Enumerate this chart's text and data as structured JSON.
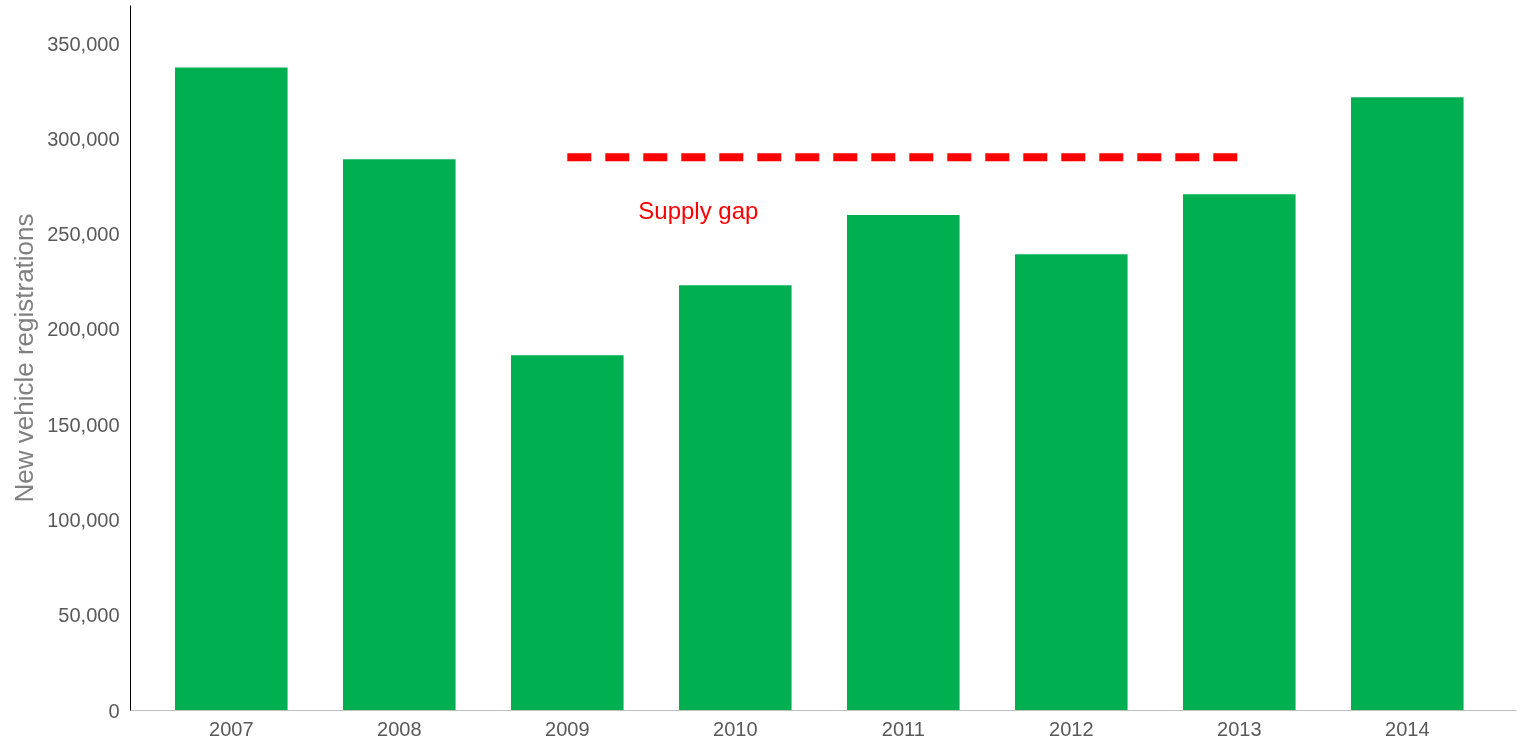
{
  "chart_data": {
    "type": "bar",
    "ylabel": "New vehicle registrations",
    "categories": [
      "2007",
      "2008",
      "2009",
      "2010",
      "2011",
      "2012",
      "2013",
      "2014"
    ],
    "series": [
      {
        "color": "#00b050",
        "values": [
          337500,
          289300,
          186400,
          223200,
          260100,
          239500,
          270900,
          321800
        ]
      },
      {
        "type": "line",
        "color": "#ff0000",
        "line_style": "dashed",
        "values": [
          null,
          null,
          290400,
          290400,
          290400,
          290400,
          290400,
          null
        ]
      }
    ],
    "annotations": [
      "Supply gap"
    ],
    "ylim": [
      0,
      370000
    ],
    "yticks": [
      0,
      {
        "value": 50000,
        "label": "50,000"
      },
      {
        "value": 100000,
        "label": "100,000"
      },
      {
        "value": 150000,
        "label": "150,000"
      },
      {
        "value": 200000,
        "label": "200,000"
      },
      {
        "value": 250000,
        "label": "250,000"
      },
      {
        "value": 300000,
        "label": "300,000"
      },
      {
        "value": 350000,
        "label": "350,000"
      }
    ],
    "grid": false
  }
}
